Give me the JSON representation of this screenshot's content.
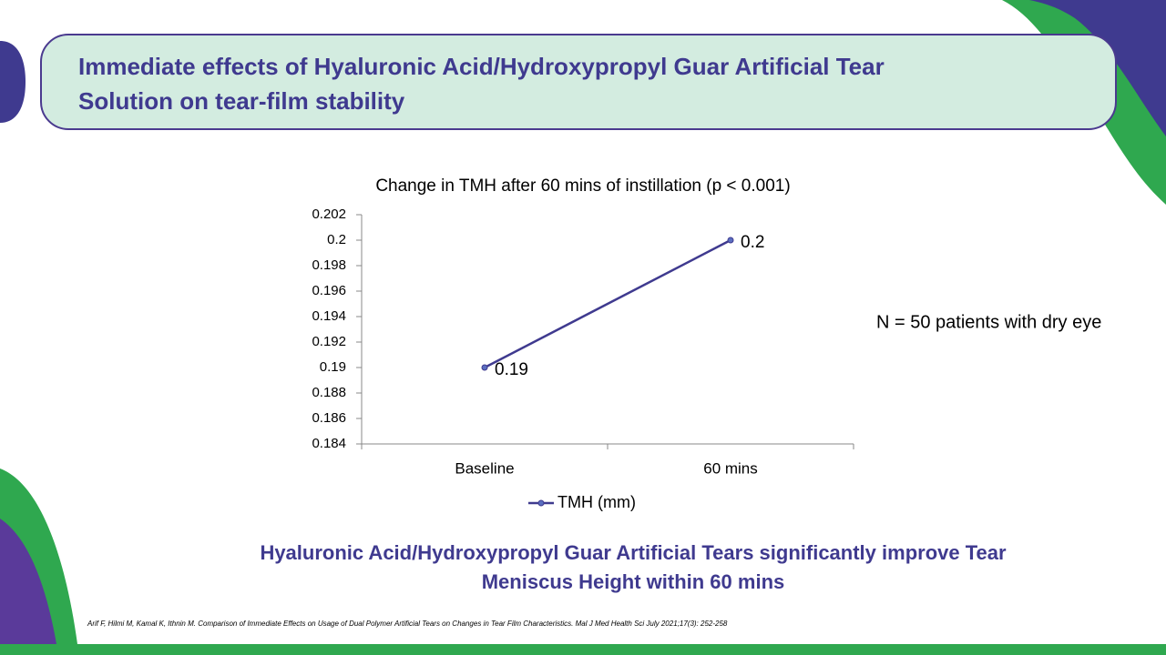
{
  "header": {
    "title_lines": [
      "Immediate effects of Hyaluronic Acid/Hydroxypropyl Guar Artificial Tear",
      "Solution on tear-film stability"
    ]
  },
  "chart_data": {
    "type": "line",
    "title": "Change in TMH after 60 mins of instillation (p < 0.001)",
    "categories": [
      "Baseline",
      "60 mins"
    ],
    "series": [
      {
        "name": "TMH (mm)",
        "color": "#3f3a8f",
        "values": [
          0.19,
          0.2
        ]
      }
    ],
    "ylim": [
      0.184,
      0.202
    ],
    "yticks": [
      0.184,
      0.186,
      0.188,
      0.19,
      0.192,
      0.194,
      0.196,
      0.198,
      0.2,
      0.202
    ],
    "grid": false,
    "legend": "bottom"
  },
  "note": "N = 50 patients with dry eye",
  "conclusion_lines": [
    "Hyaluronic Acid/Hydroxypropyl Guar Artificial Tears significantly improve Tear",
    "Meniscus Height within 60 mins"
  ],
  "citation": "Arif F, Hilmi M, Kamal K, Ithnin M. Comparison of Immediate Effects on Usage of Dual Polymer Artificial Tears on Changes in Tear Film Characteristics. Mal J Med Health Sci July 2021;17(3): 252-258"
}
